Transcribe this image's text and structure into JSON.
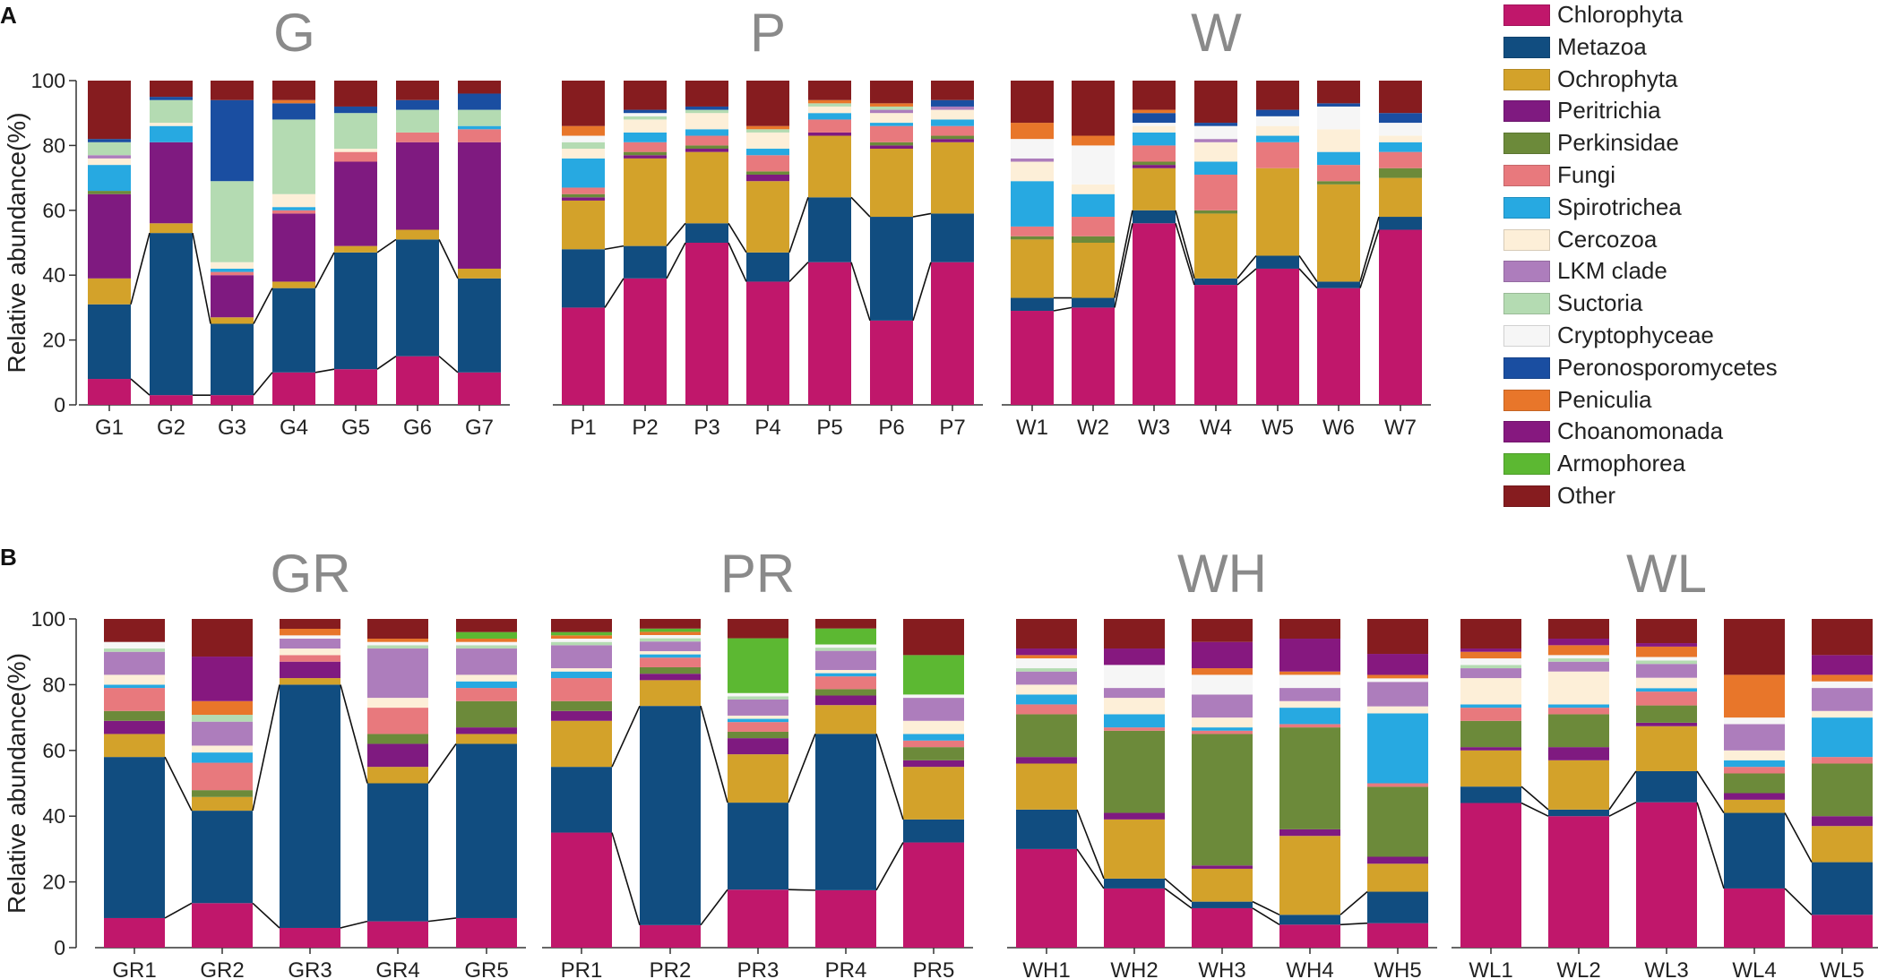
{
  "taxa": [
    {
      "name": "Chlorophyta",
      "color": "#c0176b"
    },
    {
      "name": "Metazoa",
      "color": "#114d80"
    },
    {
      "name": "Ochrophyta",
      "color": "#d3a22a"
    },
    {
      "name": "Peritrichia",
      "color": "#7f1a80"
    },
    {
      "name": "Perkinsidae",
      "color": "#6c8a3a"
    },
    {
      "name": "Fungi",
      "color": "#e8797d"
    },
    {
      "name": "Spirotrichea",
      "color": "#27a9e1"
    },
    {
      "name": "Cercozoa",
      "color": "#fdefd8"
    },
    {
      "name": "LKM clade",
      "color": "#ad7dbc"
    },
    {
      "name": "Suctoria",
      "color": "#b4dbb2"
    },
    {
      "name": "Cryptophyceae",
      "color": "#f6f6f6"
    },
    {
      "name": "Peronosporomycetes",
      "color": "#1a4ea1"
    },
    {
      "name": "Peniculia",
      "color": "#e8762a"
    },
    {
      "name": "Choanomonada",
      "color": "#86187f"
    },
    {
      "name": "Armophorea",
      "color": "#5cb832"
    },
    {
      "name": "Other",
      "color": "#861c1f"
    }
  ],
  "chart_data": [
    {
      "type": "stacked-bar",
      "panel": "A",
      "ylabel": "Relative abundance(%)",
      "ylim": [
        0,
        100
      ],
      "yticks": [
        0,
        20,
        40,
        60,
        80,
        100
      ],
      "groups": [
        {
          "title": "G",
          "samples": [
            {
              "label": "G1",
              "values": [
                8,
                23,
                8,
                26,
                1,
                0,
                8,
                2,
                1,
                4,
                0,
                1,
                0,
                0,
                0,
                18
              ]
            },
            {
              "label": "G2",
              "values": [
                3,
                50,
                3,
                25,
                0,
                0,
                5,
                1,
                0,
                7,
                0,
                1,
                0,
                0,
                0,
                5
              ]
            },
            {
              "label": "G3",
              "values": [
                3,
                22,
                2,
                13,
                0,
                1,
                1,
                2,
                0,
                25,
                0,
                25,
                0,
                0,
                0,
                6
              ]
            },
            {
              "label": "G4",
              "values": [
                10,
                26,
                2,
                21,
                0,
                1,
                1,
                4,
                0,
                23,
                0,
                5,
                1,
                0,
                0,
                6
              ]
            },
            {
              "label": "G5",
              "values": [
                11,
                36,
                2,
                26,
                0,
                3,
                0,
                1,
                0,
                11,
                0,
                2,
                0,
                0,
                0,
                8
              ]
            },
            {
              "label": "G6",
              "values": [
                15,
                36,
                3,
                27,
                0,
                3,
                0,
                0,
                0,
                7,
                0,
                3,
                0,
                0,
                0,
                6
              ]
            },
            {
              "label": "G7",
              "values": [
                10,
                29,
                3,
                39,
                0,
                4,
                1,
                0,
                0,
                5,
                0,
                5,
                0,
                0,
                0,
                4
              ]
            }
          ]
        },
        {
          "title": "P",
          "samples": [
            {
              "label": "P1",
              "values": [
                30,
                18,
                15,
                1,
                1,
                2,
                9,
                3,
                0,
                2,
                2,
                0,
                3,
                0,
                0,
                14
              ]
            },
            {
              "label": "P2",
              "values": [
                39,
                10,
                27,
                1,
                1,
                3,
                3,
                4,
                0,
                1,
                1,
                1,
                0,
                0,
                0,
                9
              ]
            },
            {
              "label": "P3",
              "values": [
                50,
                6,
                22,
                1,
                1,
                3,
                2,
                5,
                0,
                1,
                0,
                1,
                0,
                0,
                0,
                8
              ]
            },
            {
              "label": "P4",
              "values": [
                38,
                9,
                22,
                2,
                1,
                5,
                2,
                5,
                0,
                1,
                0,
                0,
                1,
                0,
                0,
                14
              ]
            },
            {
              "label": "P5",
              "values": [
                44,
                20,
                19,
                1,
                0,
                4,
                2,
                2,
                0,
                1,
                0,
                0,
                1,
                0,
                0,
                6
              ]
            },
            {
              "label": "P6",
              "values": [
                26,
                32,
                21,
                1,
                1,
                5,
                1,
                3,
                1,
                1,
                0,
                0,
                1,
                0,
                0,
                7
              ]
            },
            {
              "label": "P7",
              "values": [
                44,
                15,
                22,
                1,
                1,
                3,
                2,
                3,
                1,
                0,
                0,
                2,
                0,
                0,
                0,
                6
              ]
            }
          ]
        },
        {
          "title": "W",
          "samples": [
            {
              "label": "W1",
              "values": [
                29,
                4,
                18,
                0,
                1,
                3,
                14,
                6,
                1,
                0,
                6,
                0,
                5,
                0,
                0,
                13
              ]
            },
            {
              "label": "W2",
              "values": [
                30,
                3,
                17,
                0,
                2,
                6,
                7,
                3,
                0,
                0,
                12,
                0,
                3,
                0,
                0,
                17
              ]
            },
            {
              "label": "W3",
              "values": [
                56,
                4,
                13,
                1,
                1,
                5,
                4,
                2,
                0,
                0,
                1,
                3,
                1,
                0,
                0,
                9
              ]
            },
            {
              "label": "W4",
              "values": [
                37,
                2,
                20,
                0,
                1,
                11,
                4,
                6,
                1,
                0,
                4,
                1,
                0,
                0,
                0,
                13
              ]
            },
            {
              "label": "W5",
              "values": [
                42,
                4,
                27,
                0,
                0,
                8,
                2,
                3,
                0,
                0,
                3,
                2,
                0,
                0,
                0,
                9
              ]
            },
            {
              "label": "W6",
              "values": [
                36,
                2,
                30,
                0,
                1,
                5,
                4,
                7,
                0,
                0,
                7,
                1,
                0,
                0,
                0,
                7
              ]
            },
            {
              "label": "W7",
              "values": [
                54,
                4,
                12,
                0,
                3,
                5,
                3,
                2,
                0,
                0,
                4,
                3,
                0,
                0,
                0,
                10
              ]
            }
          ]
        }
      ]
    },
    {
      "type": "stacked-bar",
      "panel": "B",
      "ylabel": "Relative abundance(%)",
      "ylim": [
        0,
        100
      ],
      "yticks": [
        0,
        20,
        40,
        60,
        80,
        100
      ],
      "groups": [
        {
          "title": "GR",
          "samples": [
            {
              "label": "GR1",
              "values": [
                9,
                49,
                7,
                4,
                3,
                7,
                1,
                3,
                7,
                1,
                2,
                0,
                0,
                0,
                0,
                7
              ]
            },
            {
              "label": "GR2",
              "values": [
                13,
                27,
                4,
                0,
                2,
                8,
                3,
                2,
                7,
                2,
                0,
                0,
                4,
                13,
                0,
                11
              ]
            },
            {
              "label": "GR3",
              "values": [
                6,
                74,
                2,
                5,
                0,
                2,
                0,
                2,
                3,
                0,
                1,
                0,
                2,
                0,
                0,
                3
              ]
            },
            {
              "label": "GR4",
              "values": [
                8,
                42,
                5,
                7,
                3,
                8,
                0,
                3,
                15,
                1,
                1,
                0,
                1,
                0,
                0,
                6
              ]
            },
            {
              "label": "GR5",
              "values": [
                9,
                53,
                3,
                2,
                8,
                4,
                2,
                2,
                8,
                1,
                1,
                0,
                1,
                0,
                2,
                4
              ]
            }
          ]
        },
        {
          "title": "PR",
          "samples": [
            {
              "label": "PR1",
              "values": [
                35,
                20,
                14,
                3,
                3,
                7,
                2,
                1,
                7,
                1,
                1,
                0,
                1,
                0,
                1,
                4
              ]
            },
            {
              "label": "PR2",
              "values": [
                7,
                68,
                8,
                2,
                2,
                3,
                1,
                1,
                3,
                1,
                1,
                0,
                1,
                0,
                1,
                3
              ]
            },
            {
              "label": "PR3",
              "values": [
                18,
                27,
                15,
                5,
                2,
                3,
                1,
                1,
                5,
                1,
                1,
                0,
                0,
                0,
                17,
                6
              ]
            },
            {
              "label": "PR4",
              "values": [
                18,
                49,
                9,
                3,
                2,
                4,
                1,
                1,
                6,
                1,
                1,
                0,
                0,
                0,
                5,
                3
              ]
            },
            {
              "label": "PR5",
              "values": [
                32,
                7,
                16,
                2,
                4,
                2,
                2,
                4,
                7,
                0,
                1,
                0,
                0,
                0,
                12,
                11
              ]
            }
          ]
        },
        {
          "title": "WH",
          "samples": [
            {
              "label": "WH1",
              "values": [
                30,
                12,
                14,
                2,
                13,
                3,
                3,
                3,
                4,
                1,
                3,
                0,
                1,
                2,
                0,
                9
              ]
            },
            {
              "label": "WH2",
              "values": [
                18,
                3,
                18,
                2,
                25,
                1,
                4,
                5,
                3,
                0,
                7,
                0,
                0,
                5,
                0,
                9
              ]
            },
            {
              "label": "WH3",
              "values": [
                12,
                2,
                10,
                1,
                40,
                1,
                1,
                3,
                7,
                0,
                6,
                0,
                2,
                8,
                0,
                7
              ]
            },
            {
              "label": "WH4",
              "values": [
                7,
                3,
                24,
                2,
                31,
                1,
                5,
                2,
                4,
                0,
                4,
                0,
                1,
                10,
                0,
                6
              ]
            },
            {
              "label": "WH5",
              "values": [
                7,
                9,
                8,
                2,
                20,
                1,
                20,
                2,
                7,
                0,
                1,
                0,
                1,
                6,
                0,
                10
              ]
            }
          ]
        },
        {
          "title": "WL",
          "samples": [
            {
              "label": "WL1",
              "values": [
                44,
                5,
                11,
                1,
                8,
                4,
                1,
                8,
                3,
                1,
                2,
                0,
                2,
                1,
                0,
                9
              ]
            },
            {
              "label": "WL2",
              "values": [
                40,
                2,
                15,
                4,
                10,
                2,
                1,
                10,
                3,
                1,
                1,
                0,
                3,
                2,
                0,
                6
              ]
            },
            {
              "label": "WL3",
              "values": [
                42,
                9,
                13,
                1,
                5,
                4,
                1,
                3,
                4,
                1,
                1,
                0,
                3,
                1,
                0,
                7
              ]
            },
            {
              "label": "WL4",
              "values": [
                18,
                23,
                4,
                2,
                6,
                2,
                2,
                3,
                8,
                0,
                2,
                0,
                13,
                0,
                0,
                17
              ]
            },
            {
              "label": "WL5",
              "values": [
                10,
                16,
                11,
                3,
                16,
                2,
                12,
                2,
                7,
                0,
                2,
                0,
                2,
                6,
                0,
                11
              ]
            }
          ]
        }
      ]
    }
  ]
}
